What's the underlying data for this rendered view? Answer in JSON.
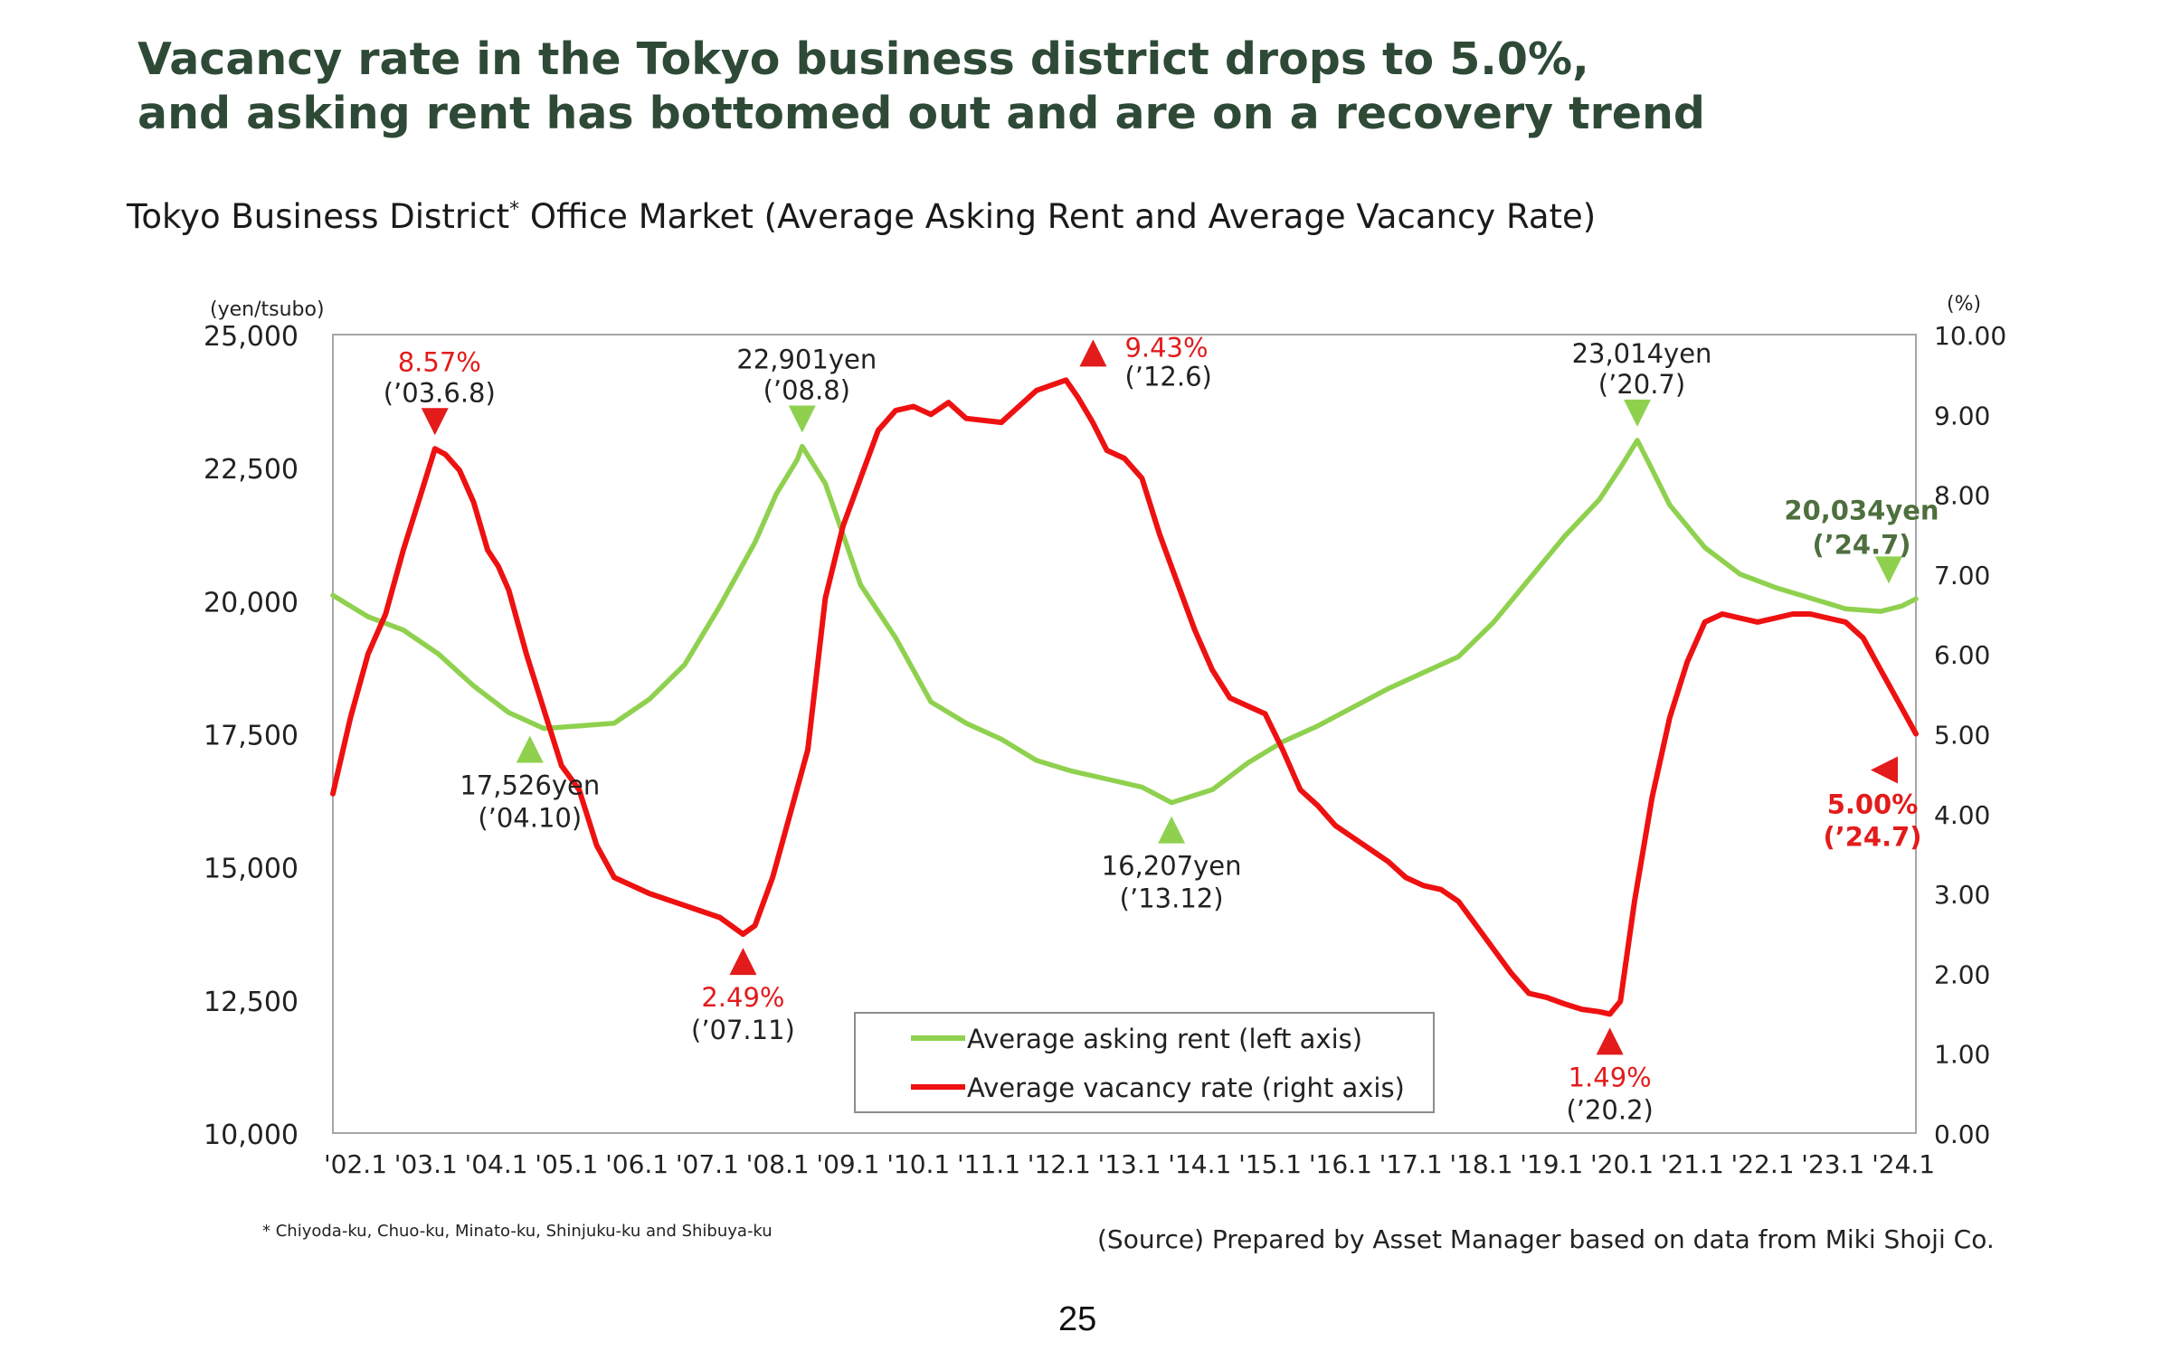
{
  "headline": {
    "line1": "Vacancy rate in the Tokyo business district drops to 5.0%,",
    "line2": "and asking rent has bottomed out and are on a recovery trend"
  },
  "subtitle": {
    "text": "Tokyo Business District",
    "sup": "*",
    "rest": " Office Market (Average Asking Rent and Average Vacancy Rate)"
  },
  "footnote": "* Chiyoda-ku, Chuo-ku, Minato-ku, Shinjuku-ku and Shibuya-ku",
  "source": "(Source) Prepared by Asset Manager based on data from Miki Shoji Co.",
  "page_number": "25",
  "chart_data": {
    "type": "line",
    "left_axis": {
      "unit": "(yen/tsubo)",
      "min": 10000,
      "max": 25000,
      "ticks": [
        "10,000",
        "12,500",
        "15,000",
        "17,500",
        "20,000",
        "22,500",
        "25,000"
      ]
    },
    "right_axis": {
      "unit": "(%)",
      "min": 0,
      "max": 10,
      "ticks": [
        "0.00",
        "1.00",
        "2.00",
        "3.00",
        "4.00",
        "5.00",
        "6.00",
        "7.00",
        "8.00",
        "9.00",
        "10.00"
      ]
    },
    "x_start": 2002.0,
    "x_end": 2024.5,
    "x_ticks": [
      "'02.1",
      "'03.1",
      "'04.1",
      "'05.1",
      "'06.1",
      "'07.1",
      "'08.1",
      "'09.1",
      "'10.1",
      "'11.1",
      "'12.1",
      "'13.1",
      "'14.1",
      "'15.1",
      "'16.1",
      "'17.1",
      "'18.1",
      "'19.1",
      "'20.1",
      "'21.1",
      "'22.1",
      "'23.1",
      "'24.1"
    ],
    "grid": false,
    "legend_position": "bottom-center",
    "series": [
      {
        "name": "Average asking rent (left axis)",
        "axis": "left",
        "color": "#8fd14f",
        "points": [
          [
            2002.0,
            20100
          ],
          [
            2002.5,
            19700
          ],
          [
            2003.0,
            19450
          ],
          [
            2003.5,
            19000
          ],
          [
            2004.0,
            18400
          ],
          [
            2004.5,
            17900
          ],
          [
            2005.0,
            17600
          ],
          [
            2005.5,
            17650
          ],
          [
            2006.0,
            17700
          ],
          [
            2006.5,
            18150
          ],
          [
            2007.0,
            18800
          ],
          [
            2007.5,
            19900
          ],
          [
            2008.0,
            21100
          ],
          [
            2008.3,
            22000
          ],
          [
            2008.6,
            22650
          ],
          [
            2008.67,
            22901
          ],
          [
            2009.0,
            22200
          ],
          [
            2009.5,
            20300
          ],
          [
            2010.0,
            19300
          ],
          [
            2010.5,
            18100
          ],
          [
            2011.0,
            17700
          ],
          [
            2011.5,
            17400
          ],
          [
            2012.0,
            17000
          ],
          [
            2012.5,
            16800
          ],
          [
            2013.0,
            16650
          ],
          [
            2013.5,
            16500
          ],
          [
            2013.92,
            16207
          ],
          [
            2014.5,
            16450
          ],
          [
            2015.0,
            16950
          ],
          [
            2015.5,
            17350
          ],
          [
            2016.0,
            17650
          ],
          [
            2016.5,
            18000
          ],
          [
            2017.0,
            18350
          ],
          [
            2017.5,
            18650
          ],
          [
            2018.0,
            18950
          ],
          [
            2018.5,
            19600
          ],
          [
            2019.0,
            20400
          ],
          [
            2019.5,
            21200
          ],
          [
            2020.0,
            21900
          ],
          [
            2020.3,
            22500
          ],
          [
            2020.54,
            23014
          ],
          [
            2020.7,
            22600
          ],
          [
            2021.0,
            21800
          ],
          [
            2021.5,
            21000
          ],
          [
            2022.0,
            20500
          ],
          [
            2022.5,
            20250
          ],
          [
            2023.0,
            20050
          ],
          [
            2023.5,
            19850
          ],
          [
            2024.0,
            19800
          ],
          [
            2024.3,
            19900
          ],
          [
            2024.5,
            20034
          ]
        ]
      },
      {
        "name": "Average vacancy rate (right axis)",
        "axis": "right",
        "color": "#ee1111",
        "points": [
          [
            2002.0,
            4.25
          ],
          [
            2002.25,
            5.2
          ],
          [
            2002.5,
            6.0
          ],
          [
            2002.75,
            6.5
          ],
          [
            2003.0,
            7.3
          ],
          [
            2003.25,
            8.0
          ],
          [
            2003.45,
            8.57
          ],
          [
            2003.6,
            8.5
          ],
          [
            2003.8,
            8.3
          ],
          [
            2004.0,
            7.9
          ],
          [
            2004.2,
            7.3
          ],
          [
            2004.35,
            7.1
          ],
          [
            2004.5,
            6.8
          ],
          [
            2004.75,
            6.0
          ],
          [
            2005.0,
            5.3
          ],
          [
            2005.25,
            4.6
          ],
          [
            2005.5,
            4.3
          ],
          [
            2005.75,
            3.6
          ],
          [
            2006.0,
            3.2
          ],
          [
            2006.5,
            3.0
          ],
          [
            2007.0,
            2.85
          ],
          [
            2007.5,
            2.7
          ],
          [
            2007.83,
            2.49
          ],
          [
            2008.0,
            2.6
          ],
          [
            2008.25,
            3.2
          ],
          [
            2008.5,
            4.0
          ],
          [
            2008.75,
            4.8
          ],
          [
            2009.0,
            6.7
          ],
          [
            2009.25,
            7.6
          ],
          [
            2009.5,
            8.2
          ],
          [
            2009.75,
            8.8
          ],
          [
            2010.0,
            9.05
          ],
          [
            2010.25,
            9.1
          ],
          [
            2010.5,
            9.0
          ],
          [
            2010.75,
            9.15
          ],
          [
            2011.0,
            8.95
          ],
          [
            2011.5,
            8.9
          ],
          [
            2011.75,
            9.1
          ],
          [
            2012.0,
            9.3
          ],
          [
            2012.42,
            9.43
          ],
          [
            2012.6,
            9.2
          ],
          [
            2012.8,
            8.9
          ],
          [
            2013.0,
            8.55
          ],
          [
            2013.25,
            8.45
          ],
          [
            2013.5,
            8.2
          ],
          [
            2013.75,
            7.5
          ],
          [
            2014.0,
            6.9
          ],
          [
            2014.25,
            6.3
          ],
          [
            2014.5,
            5.8
          ],
          [
            2014.75,
            5.45
          ],
          [
            2015.0,
            5.35
          ],
          [
            2015.25,
            5.25
          ],
          [
            2015.5,
            4.8
          ],
          [
            2015.75,
            4.3
          ],
          [
            2016.0,
            4.1
          ],
          [
            2016.25,
            3.85
          ],
          [
            2016.5,
            3.7
          ],
          [
            2016.75,
            3.55
          ],
          [
            2017.0,
            3.4
          ],
          [
            2017.25,
            3.2
          ],
          [
            2017.5,
            3.1
          ],
          [
            2017.75,
            3.05
          ],
          [
            2018.0,
            2.9
          ],
          [
            2018.25,
            2.6
          ],
          [
            2018.5,
            2.3
          ],
          [
            2018.75,
            2.0
          ],
          [
            2019.0,
            1.75
          ],
          [
            2019.25,
            1.7
          ],
          [
            2019.5,
            1.62
          ],
          [
            2019.75,
            1.55
          ],
          [
            2020.0,
            1.52
          ],
          [
            2020.15,
            1.49
          ],
          [
            2020.3,
            1.65
          ],
          [
            2020.5,
            2.9
          ],
          [
            2020.75,
            4.2
          ],
          [
            2021.0,
            5.2
          ],
          [
            2021.25,
            5.9
          ],
          [
            2021.5,
            6.4
          ],
          [
            2021.75,
            6.5
          ],
          [
            2022.0,
            6.45
          ],
          [
            2022.25,
            6.4
          ],
          [
            2022.5,
            6.45
          ],
          [
            2022.75,
            6.5
          ],
          [
            2023.0,
            6.5
          ],
          [
            2023.25,
            6.45
          ],
          [
            2023.5,
            6.4
          ],
          [
            2023.75,
            6.2
          ],
          [
            2024.0,
            5.8
          ],
          [
            2024.25,
            5.4
          ],
          [
            2024.5,
            5.0
          ]
        ]
      }
    ],
    "annotations": [
      {
        "text": "8.57%",
        "text2": "(’03.6.8)",
        "color": "#e31b1b",
        "color2": "#222222",
        "x": 2003.45,
        "series": 1,
        "marker": "down",
        "marker_color": "#e31b1b",
        "side": "above"
      },
      {
        "text": "22,901yen",
        "text2": "(’08.8)",
        "color": "#222222",
        "color2": "#222222",
        "x": 2008.67,
        "series": 0,
        "marker": "down",
        "marker_color": "#8fd14f",
        "side": "above"
      },
      {
        "text": "9.43%",
        "text2": "(’12.6)",
        "color": "#e31b1b",
        "color2": "#222222",
        "x": 2012.42,
        "series": 1,
        "marker": "up",
        "marker_color": "#e31b1b",
        "side": "right"
      },
      {
        "text": "23,014yen",
        "text2": "(’20.7)",
        "color": "#222222",
        "color2": "#222222",
        "x": 2020.54,
        "series": 0,
        "marker": "down",
        "marker_color": "#8fd14f",
        "side": "above"
      },
      {
        "text": "17,526yen",
        "text2": "(’04.10)",
        "color": "#222222",
        "color2": "#222222",
        "x": 2004.8,
        "series": 0,
        "marker": "up",
        "marker_color": "#8fd14f",
        "side": "below"
      },
      {
        "text": "2.49%",
        "text2": "(’07.11)",
        "color": "#e31b1b",
        "color2": "#222222",
        "x": 2007.83,
        "series": 1,
        "marker": "up",
        "marker_color": "#e31b1b",
        "side": "below"
      },
      {
        "text": "16,207yen",
        "text2": "(’13.12)",
        "color": "#222222",
        "color2": "#222222",
        "x": 2013.92,
        "series": 0,
        "marker": "up",
        "marker_color": "#8fd14f",
        "side": "below"
      },
      {
        "text": "1.49%",
        "text2": "(’20.2)",
        "color": "#e31b1b",
        "color2": "#222222",
        "x": 2020.15,
        "series": 1,
        "marker": "up",
        "marker_color": "#e31b1b",
        "side": "below"
      },
      {
        "text": "20,034yen",
        "text2": "(’24.7)",
        "color": "#4e6f3e",
        "color2": "#4e6f3e",
        "bold": true,
        "x": 2024.5,
        "series": 0,
        "marker": "down",
        "marker_color": "#8fd14f",
        "side": "left-above"
      },
      {
        "text": "5.00%",
        "text2": "(’24.7)",
        "color": "#e31b1b",
        "color2": "#e31b1b",
        "bold": true,
        "x": 2024.5,
        "series": 1,
        "marker": "left",
        "marker_color": "#e31b1b",
        "side": "left-below"
      }
    ]
  }
}
